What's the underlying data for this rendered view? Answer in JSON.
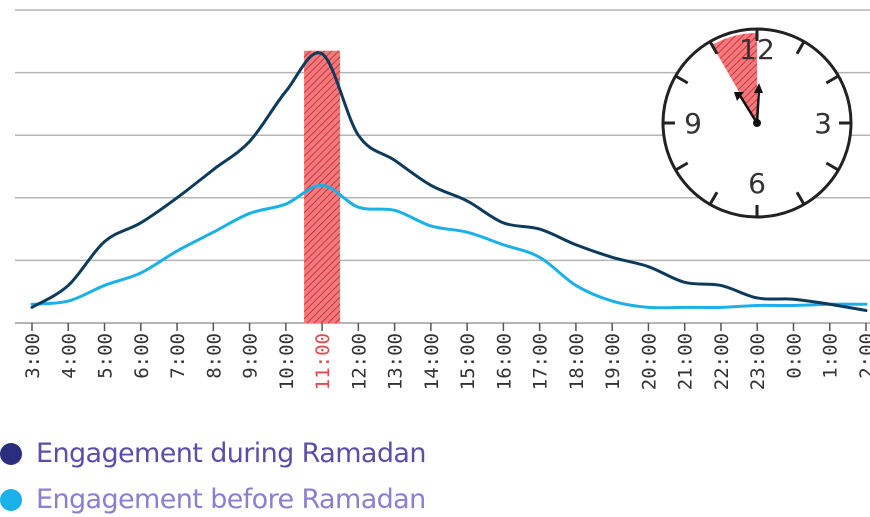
{
  "chart_data": {
    "type": "line",
    "title": "",
    "xlabel": "",
    "ylabel": "",
    "categories": [
      "3:00",
      "4:00",
      "5:00",
      "6:00",
      "7:00",
      "8:00",
      "9:00",
      "10:00",
      "11:00",
      "12:00",
      "13:00",
      "14:00",
      "15:00",
      "16:00",
      "17:00",
      "18:00",
      "19:00",
      "20:00",
      "21:00",
      "22:00",
      "23:00",
      "0:00",
      "1:00",
      "2:00"
    ],
    "ylim": [
      0,
      5
    ],
    "grid": true,
    "legend_position": "bottom-left",
    "highlight_category": "11:00",
    "series": [
      {
        "name": "Engagement during Ramadan",
        "color": "#0d3b5c",
        "values": [
          0.25,
          0.6,
          1.3,
          1.6,
          2.0,
          2.45,
          2.9,
          3.7,
          4.3,
          3.0,
          2.6,
          2.2,
          1.95,
          1.6,
          1.5,
          1.25,
          1.05,
          0.9,
          0.65,
          0.6,
          0.4,
          0.38,
          0.3,
          0.2
        ]
      },
      {
        "name": "Engagement before Ramadan",
        "color": "#1ab0e8",
        "values": [
          0.3,
          0.35,
          0.6,
          0.8,
          1.15,
          1.45,
          1.75,
          1.9,
          2.2,
          1.85,
          1.8,
          1.55,
          1.45,
          1.25,
          1.05,
          0.6,
          0.35,
          0.25,
          0.25,
          0.25,
          0.28,
          0.28,
          0.3,
          0.3
        ]
      }
    ]
  },
  "legend": [
    {
      "label": "Engagement during Ramadan",
      "dot_color": "#2b2e7e",
      "text_color": "#5a4fa8"
    },
    {
      "label": "Engagement before Ramadan",
      "dot_color": "#1ab0e8",
      "text_color": "#8a7fd0"
    }
  ],
  "clock": {
    "numbers": [
      "12",
      "3",
      "6",
      "9"
    ],
    "highlight_color": "#e8474c"
  },
  "colors": {
    "highlight": "#e8474c",
    "grid": "#b5b5b5",
    "axis_text": "#333333",
    "highlight_text": "#e8474c"
  }
}
